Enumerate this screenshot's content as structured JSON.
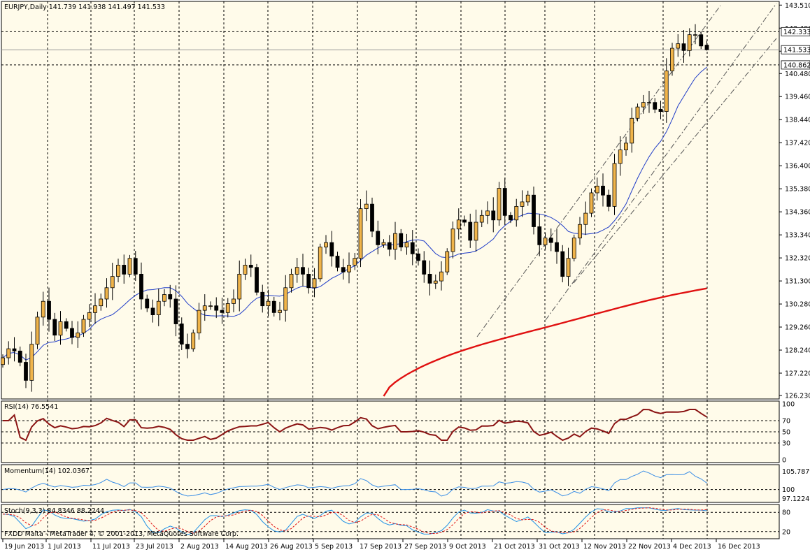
{
  "colors": {
    "background": "#fffbea",
    "bull": "#f0b44a",
    "bear": "#000000",
    "ma_fast": "#1f3cc8",
    "ma_slow": "#e01010",
    "rsi": "#8b1414",
    "momentum": "#3a8ee6",
    "stoch_main": "#1e90e6",
    "stoch_signal": "#e01010",
    "grid": "#000000"
  },
  "header": {
    "main_info": "EURJPY,Daily  141.739 141.938 141.497 141.533",
    "rsi_info": "RSI(14) 76.5541",
    "momentum_info": "Momentum(14) 102.0367",
    "stoch_info": "Stoch(9,3,3) 84.8346 88.2244",
    "copyright": "FXDD Malta - MetaTrader 4, © 2001-2013, MetaQuotes Software Corp."
  },
  "chart_data": {
    "type": "candlestick",
    "symbol": "EURJPY",
    "timeframe": "Daily",
    "price_axis": {
      "ticks": [
        "143.510",
        "142.490",
        "141.470",
        "140.480",
        "139.460",
        "138.440",
        "137.420",
        "136.400",
        "135.380",
        "134.360",
        "133.340",
        "132.320",
        "131.300",
        "130.280",
        "129.260",
        "128.240",
        "127.220",
        "126.230"
      ],
      "range": [
        126.2,
        143.55
      ],
      "current_price": "141.533",
      "level_tags": [
        "142.333",
        "140.862"
      ]
    },
    "date_labels": [
      "19 Jun 2013",
      "1 Jul 2013",
      "11 Jul 2013",
      "23 Jul 2013",
      "2 Aug 2013",
      "14 Aug 2013",
      "26 Aug 2013",
      "5 Sep 2013",
      "17 Sep 2013",
      "27 Sep 2013",
      "9 Oct 2013",
      "21 Oct 2013",
      "31 Oct 2013",
      "12 Nov 2013",
      "22 Nov 2013",
      "4 Dec 2013",
      "16 Dec 2013"
    ],
    "closes": [
      127.9,
      128.3,
      128.2,
      127.7,
      126.9,
      128.5,
      129.7,
      130.4,
      129.6,
      128.9,
      129.5,
      129.2,
      128.8,
      129.0,
      129.6,
      129.9,
      130.2,
      130.5,
      131.0,
      131.5,
      132.0,
      131.6,
      132.3,
      131.6,
      130.5,
      130.1,
      129.8,
      130.4,
      130.7,
      130.5,
      129.4,
      128.5,
      128.3,
      129.0,
      130.0,
      130.2,
      130.2,
      130.0,
      129.9,
      130.3,
      130.5,
      131.6,
      132.0,
      131.9,
      130.8,
      130.2,
      130.4,
      129.9,
      130.0,
      131.0,
      131.6,
      131.9,
      131.6,
      131.0,
      131.4,
      132.8,
      133.0,
      132.4,
      131.9,
      131.7,
      132.0,
      132.3,
      134.5,
      134.7,
      133.5,
      132.9,
      133.0,
      132.7,
      133.4,
      132.8,
      133.0,
      132.5,
      132.2,
      131.6,
      131.2,
      131.3,
      131.7,
      132.6,
      133.6,
      134.0,
      133.9,
      133.1,
      133.9,
      134.2,
      134.4,
      134.0,
      135.4,
      134.2,
      134.0,
      134.6,
      134.8,
      135.1,
      133.7,
      132.9,
      133.2,
      133.0,
      132.6,
      131.5,
      132.3,
      133.2,
      133.8,
      134.3,
      135.2,
      135.5,
      135.1,
      134.6,
      136.5,
      137.1,
      137.4,
      138.5,
      139.0,
      139.2,
      139.2,
      138.9,
      138.8,
      140.6,
      141.6,
      141.8,
      141.5,
      142.2,
      142.2,
      141.7,
      141.5
    ],
    "sma_fast_period": "",
    "sma_slow_period": "",
    "rsi": {
      "period": 14,
      "value": 76.5541,
      "levels": [
        30,
        50,
        70
      ],
      "axis_ticks": [
        "100",
        "70",
        "50",
        "30",
        "0"
      ]
    },
    "momentum": {
      "period": 14,
      "value": 102.0367,
      "axis_ticks": [
        "105.7879",
        "100",
        "97.1224"
      ]
    },
    "stochastic": {
      "params": "9,3,3",
      "main": 84.8346,
      "signal": 88.2244,
      "axis_ticks": [
        "80",
        "20"
      ]
    }
  }
}
